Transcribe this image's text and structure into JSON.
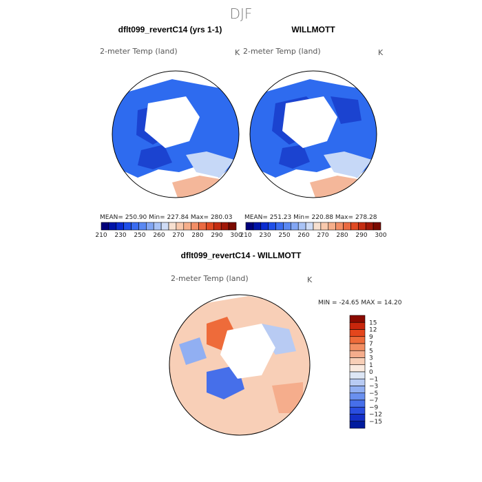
{
  "figure": {
    "season": "DJF",
    "colors": {
      "land_blue": "#2e6bef",
      "land_light": "#c6d8f7",
      "warm": "#f4b79a",
      "ocean": "#ffffff",
      "coast": "#000000"
    }
  },
  "panels": [
    {
      "title": "dflt099_revertC14 (yrs 1-1)",
      "variable": "2-meter Temp (land)",
      "unit": "K",
      "stats": {
        "mean_label": "MEAN=",
        "mean": "250.90",
        "min_label": "Min=",
        "min": "227.84",
        "max_label": "Max=",
        "max": "280.03"
      }
    },
    {
      "title": "WILLMOTT",
      "variable": "2-meter Temp (land)",
      "unit": "K",
      "stats": {
        "mean_label": "MEAN=",
        "mean": "251.23",
        "min_label": "Min=",
        "min": "220.88",
        "max_label": "Max=",
        "max": "278.28"
      }
    },
    {
      "title": "dflt099_revertC14 - WILLMOTT",
      "variable": "2-meter Temp (land)",
      "unit": "K",
      "stats": {
        "min_label": "MIN =",
        "min": "-24.65",
        "max_label": "MAX =",
        "max": "14.20"
      }
    }
  ],
  "chart_data": [
    {
      "type": "heatmap",
      "title": "dflt099_revertC14 (yrs 1-1)",
      "subtitle": "2-meter Temp (land)",
      "unit": "K",
      "projection": "north polar stereographic",
      "mean": 250.9,
      "min": 227.84,
      "max": 280.03,
      "colorbar_levels": [
        210,
        215,
        220,
        225,
        230,
        235,
        240,
        245,
        250,
        255,
        260,
        265,
        270,
        275,
        280,
        285,
        290,
        295,
        300
      ],
      "colorbar_tick_labels": [
        "210",
        "230",
        "250",
        "260",
        "270",
        "280",
        "290",
        "300"
      ],
      "colorbar_colors": [
        "#00007a",
        "#0014a8",
        "#0a2cd0",
        "#1f4fe8",
        "#3a6cf0",
        "#5a88f2",
        "#82a6f4",
        "#a9c3f6",
        "#cfdcf6",
        "#f7e0d0",
        "#f8c9ad",
        "#f6ae8a",
        "#f28e66",
        "#ea6a42",
        "#e04a22",
        "#c42d12",
        "#a01808",
        "#7a0a00"
      ]
    },
    {
      "type": "heatmap",
      "title": "WILLMOTT",
      "subtitle": "2-meter Temp (land)",
      "unit": "K",
      "projection": "north polar stereographic",
      "mean": 251.23,
      "min": 220.88,
      "max": 278.28,
      "colorbar_tick_labels": [
        "210",
        "230",
        "250",
        "260",
        "270",
        "280",
        "290",
        "300"
      ]
    },
    {
      "type": "heatmap",
      "title": "dflt099_revertC14 - WILLMOTT",
      "subtitle": "2-meter Temp (land)",
      "unit": "K",
      "projection": "north polar stereographic",
      "min": -24.65,
      "max": 14.2,
      "colorbar_tick_labels": [
        "15",
        "12",
        "9",
        "7",
        "5",
        "3",
        "1",
        "0",
        "-1",
        "-3",
        "-5",
        "-7",
        "-9",
        "-12",
        "-15"
      ],
      "colorbar_colors": [
        "#8a0a00",
        "#c8260c",
        "#e4461c",
        "#ee6b3a",
        "#f28e62",
        "#f5ad8c",
        "#f8cfb7",
        "#faeadf",
        "#dde6f5",
        "#b8cbf3",
        "#91aff2",
        "#6a90ef",
        "#466fea",
        "#2a4ee0",
        "#1430c8",
        "#001b9e"
      ]
    }
  ]
}
